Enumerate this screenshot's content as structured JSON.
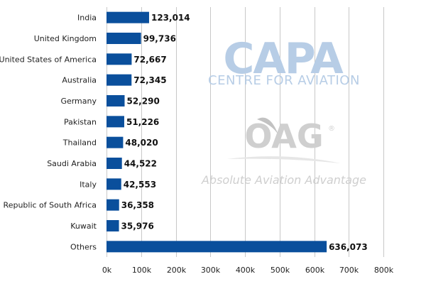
{
  "chart_data": {
    "type": "bar",
    "orientation": "horizontal",
    "title": "",
    "xlabel": "",
    "ylabel": "",
    "categories": [
      "India",
      "United Kingdom",
      "United States of America",
      "Australia",
      "Germany",
      "Pakistan",
      "Thailand",
      "Saudi Arabia",
      "Italy",
      "Republic of South Africa",
      "Kuwait",
      "Others"
    ],
    "values": [
      123014,
      99736,
      72667,
      72345,
      52290,
      51226,
      48020,
      44522,
      42553,
      36358,
      35976,
      636073
    ],
    "value_labels": [
      "123,014",
      "99,736",
      "72,667",
      "72,345",
      "52,290",
      "51,226",
      "48,020",
      "44,522",
      "42,553",
      "36,358",
      "35,976",
      "636,073"
    ],
    "xlim": [
      0,
      800000
    ],
    "xticks": [
      0,
      100000,
      200000,
      300000,
      400000,
      500000,
      600000,
      700000,
      800000
    ],
    "xtick_labels": [
      "0k",
      "100k",
      "200k",
      "300k",
      "400k",
      "500k",
      "600k",
      "700k",
      "800k"
    ],
    "grid": "vertical",
    "bar_color": "#0a4f9c"
  },
  "watermark": {
    "capa": "CAPA",
    "centre": "CENTRE FOR AVIATION",
    "oag": "OAG",
    "registered": "®",
    "tagline": "Absolute Aviation Advantage",
    "capa_color": "#b7cde6",
    "oag_color": "#cfcfcf"
  }
}
